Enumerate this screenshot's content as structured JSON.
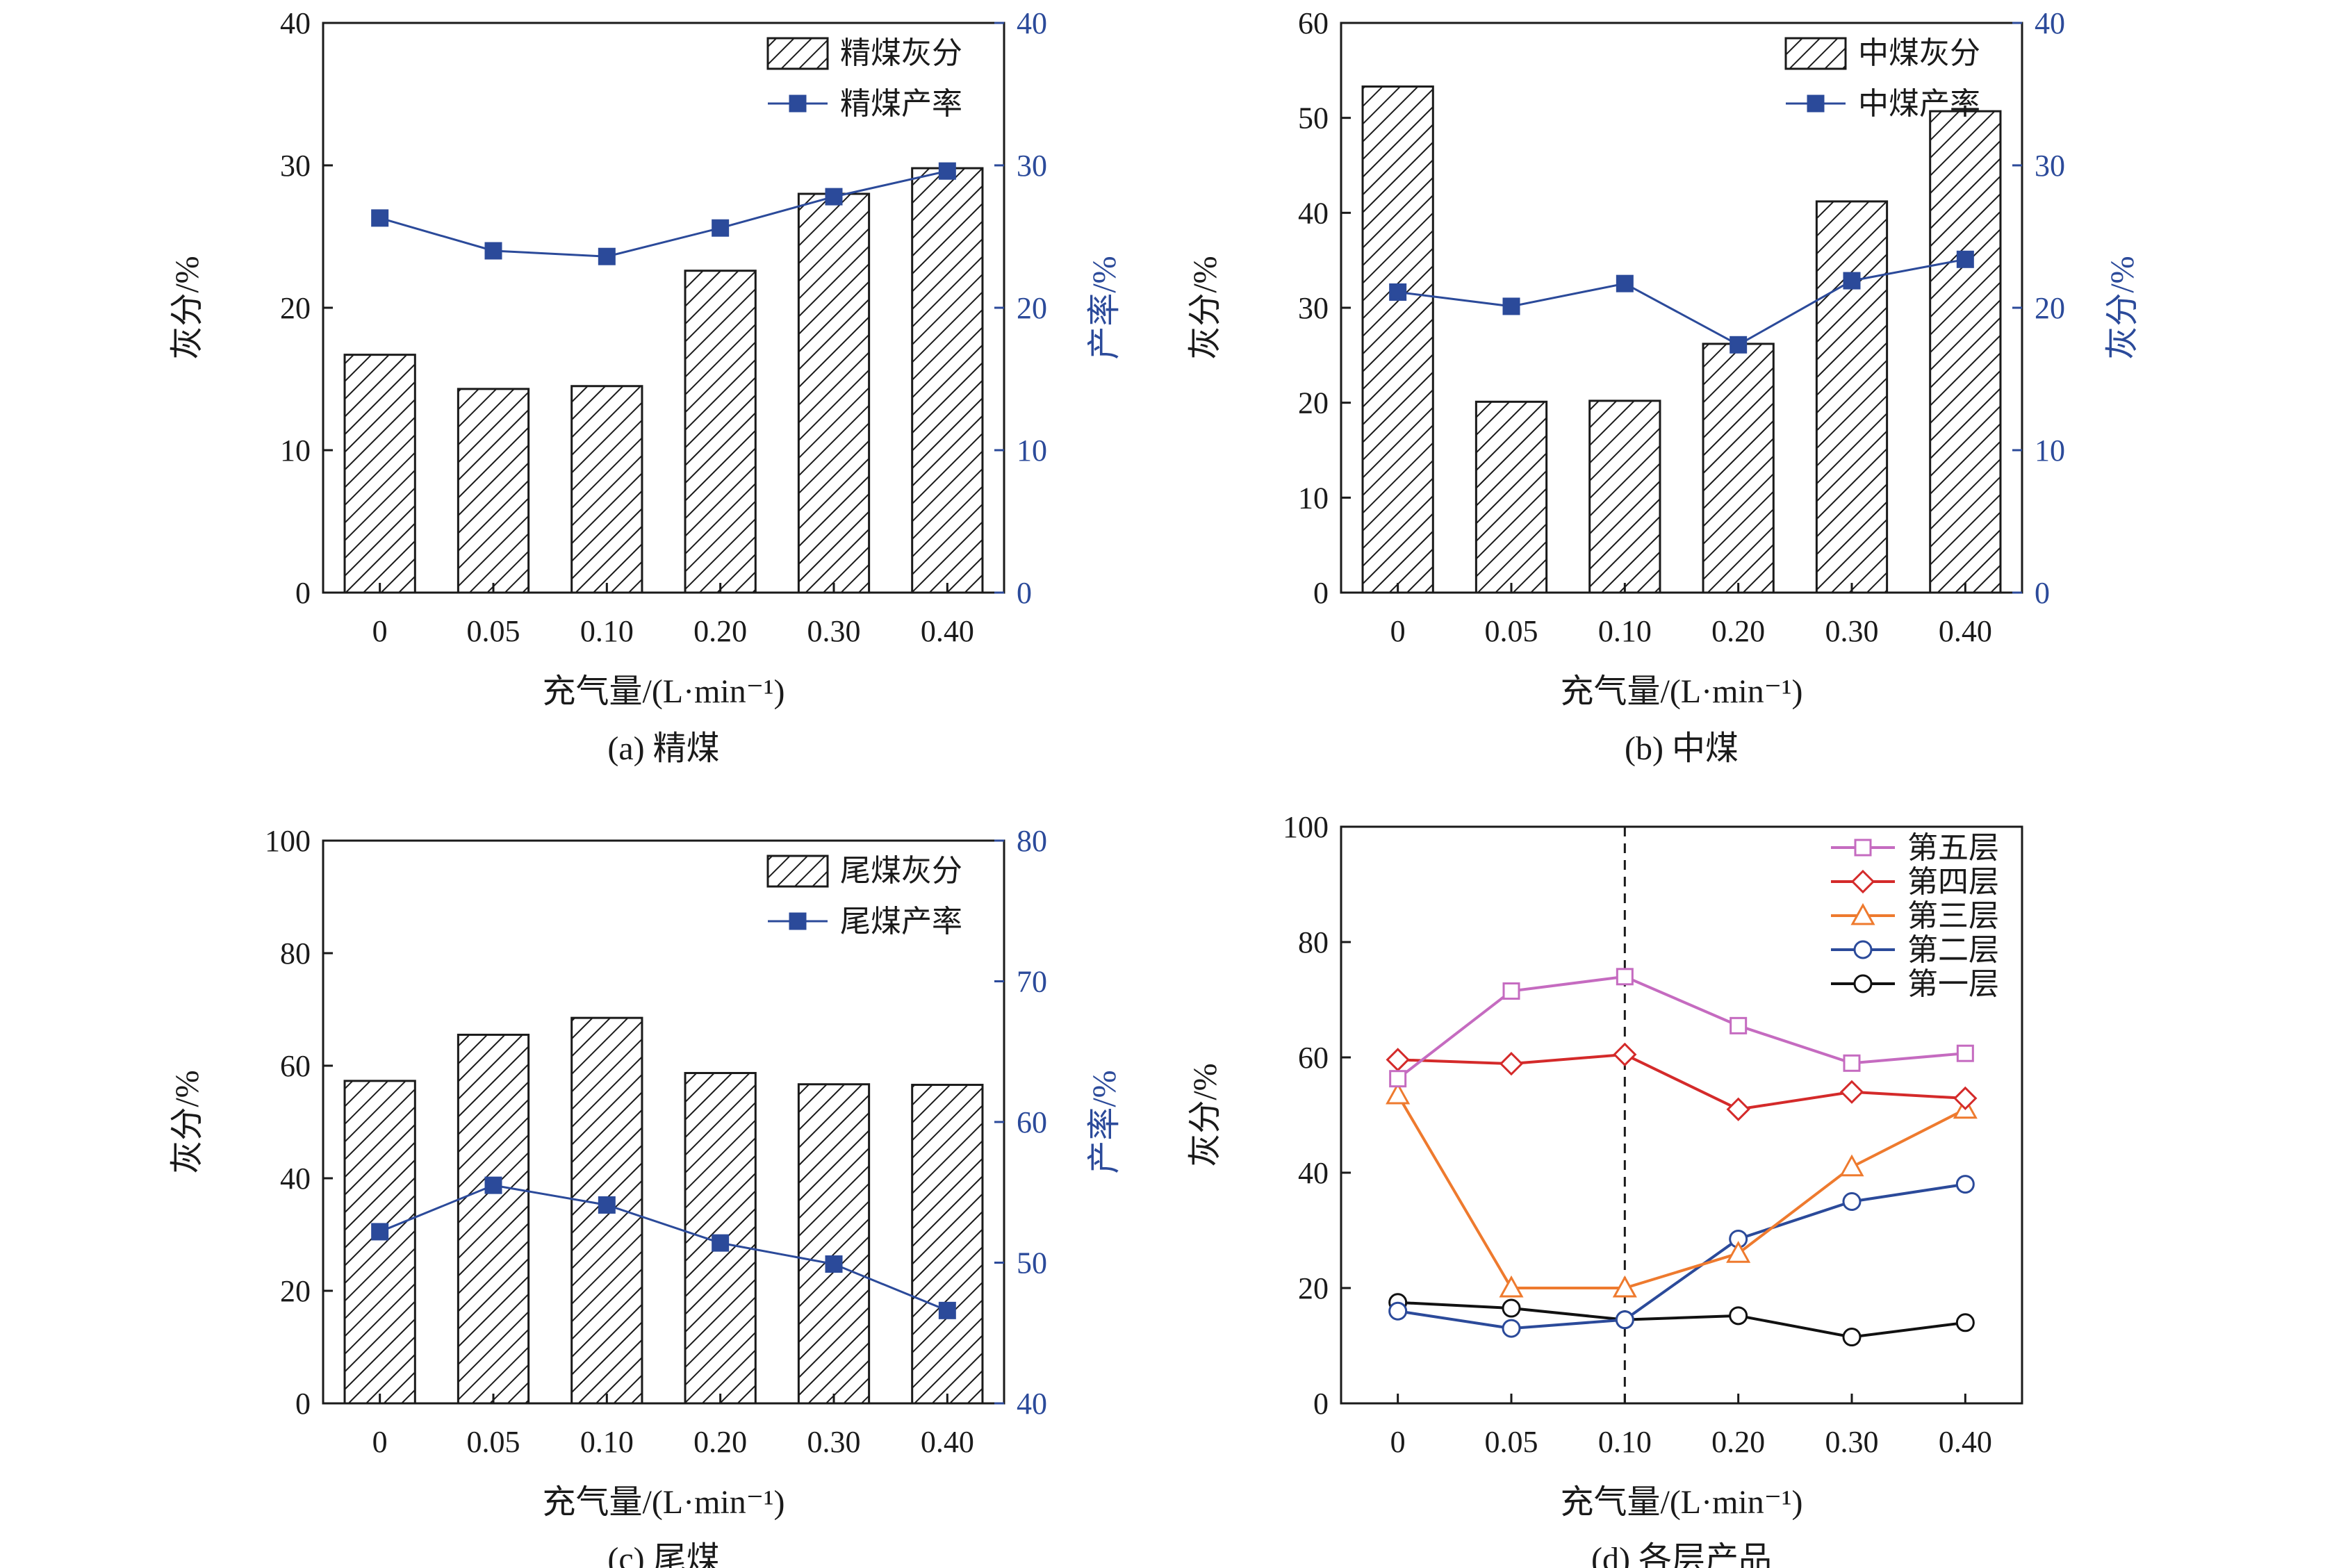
{
  "colors": {
    "axis": "#1a1a1a",
    "right_axis": "#2b4a9a",
    "bar_hatch": "#1a1a1a",
    "yield_line": "#2b4a9a",
    "layer5": "#c56bc0",
    "layer4": "#d42a2a",
    "layer3": "#ee7a2e",
    "layer2": "#2b4a9a",
    "layer1": "#111111"
  },
  "chart_data": [
    {
      "id": "a",
      "type": "bar",
      "caption": "(a) 精煤",
      "xlabel": "充气量/(L·min⁻¹)",
      "ylabel": "灰分/%",
      "ylabel_right": "产率/%",
      "categories": [
        "0",
        "0.05",
        "0.10",
        "0.20",
        "0.30",
        "0.40"
      ],
      "ylim": [
        0,
        40
      ],
      "yticks": [
        "0",
        "10",
        "20",
        "30",
        "40"
      ],
      "ylim_right": [
        0,
        40
      ],
      "yticks_right": [
        "0",
        "10",
        "20",
        "30",
        "40"
      ],
      "series": [
        {
          "name": "精煤灰分",
          "kind": "bar",
          "axis": "left",
          "values": [
            16.7,
            14.3,
            14.5,
            22.6,
            28.0,
            29.8
          ]
        },
        {
          "name": "精煤产率",
          "kind": "line",
          "axis": "right",
          "values": [
            26.3,
            24.0,
            23.6,
            25.6,
            27.8,
            29.6
          ]
        }
      ],
      "legend_position": "top-right"
    },
    {
      "id": "b",
      "type": "bar",
      "caption": "(b) 中煤",
      "xlabel": "充气量/(L·min⁻¹)",
      "ylabel": "灰分/%",
      "ylabel_right": "灰分/%",
      "categories": [
        "0",
        "0.05",
        "0.10",
        "0.20",
        "0.30",
        "0.40"
      ],
      "ylim": [
        0,
        60
      ],
      "yticks": [
        "0",
        "10",
        "20",
        "30",
        "40",
        "50",
        "60"
      ],
      "ylim_right": [
        0,
        40
      ],
      "yticks_right": [
        "0",
        "10",
        "20",
        "30",
        "40"
      ],
      "series": [
        {
          "name": "中煤灰分",
          "kind": "bar",
          "axis": "left",
          "values": [
            53.3,
            20.1,
            20.2,
            26.2,
            41.2,
            50.7
          ]
        },
        {
          "name": "中煤产率",
          "kind": "line",
          "axis": "right",
          "values": [
            21.1,
            20.1,
            21.7,
            17.4,
            21.9,
            23.4
          ]
        }
      ],
      "legend_position": "top-right"
    },
    {
      "id": "c",
      "type": "bar",
      "caption": "(c) 尾煤",
      "xlabel": "充气量/(L·min⁻¹)",
      "ylabel": "灰分/%",
      "ylabel_right": "产率/%",
      "categories": [
        "0",
        "0.05",
        "0.10",
        "0.20",
        "0.30",
        "0.40"
      ],
      "ylim": [
        0,
        100
      ],
      "yticks": [
        "0",
        "20",
        "40",
        "60",
        "80",
        "100"
      ],
      "ylim_right": [
        40,
        80
      ],
      "yticks_right": [
        "40",
        "50",
        "60",
        "70",
        "80"
      ],
      "series": [
        {
          "name": "尾煤灰分",
          "kind": "bar",
          "axis": "left",
          "values": [
            57.3,
            65.5,
            68.5,
            58.7,
            56.7,
            56.6
          ]
        },
        {
          "name": "尾煤产率",
          "kind": "line",
          "axis": "right",
          "values": [
            52.2,
            55.5,
            54.1,
            51.4,
            49.9,
            46.6
          ]
        }
      ],
      "legend_position": "top-right"
    },
    {
      "id": "d",
      "type": "line",
      "caption": "(d) 各层产品",
      "xlabel": "充气量/(L·min⁻¹)",
      "ylabel": "灰分/%",
      "categories": [
        "0",
        "0.05",
        "0.10",
        "0.20",
        "0.30",
        "0.40"
      ],
      "ylim": [
        0,
        100
      ],
      "yticks": [
        "0",
        "20",
        "40",
        "60",
        "80",
        "100"
      ],
      "vline_at": "0.10",
      "series": [
        {
          "name": "第五层",
          "marker": "square",
          "values": [
            56.3,
            71.5,
            74.0,
            65.5,
            59.0,
            60.7
          ]
        },
        {
          "name": "第四层",
          "marker": "diamond",
          "values": [
            59.6,
            58.9,
            60.5,
            51.0,
            54.0,
            52.9
          ]
        },
        {
          "name": "第三层",
          "marker": "triangle",
          "values": [
            53.5,
            20.0,
            20.0,
            26.0,
            41.0,
            51.0
          ]
        },
        {
          "name": "第二层",
          "marker": "circle",
          "values": [
            16.0,
            13.0,
            14.5,
            28.5,
            35.0,
            38.0
          ]
        },
        {
          "name": "第一层",
          "marker": "circle",
          "values": [
            17.5,
            16.5,
            14.5,
            15.2,
            11.5,
            14.0
          ]
        }
      ],
      "legend_position": "top-right"
    }
  ]
}
